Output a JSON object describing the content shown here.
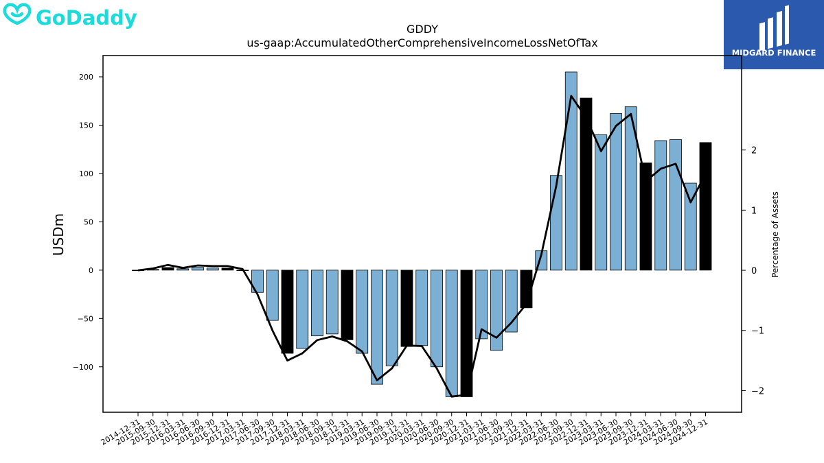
{
  "brand": {
    "logo_text": "GoDaddy",
    "logo_color": "#1BDBDB",
    "badge_text": "MIDGARD FINANCE",
    "badge_color": "#2B59AE"
  },
  "colors": {
    "bar_blue": "#7BAFD4",
    "bar_black": "#000000",
    "line": "#000000"
  },
  "chart_data": {
    "type": "bar",
    "title": "GDDY",
    "subtitle": "us-gaap:AccumulatedOtherComprehensiveIncomeLossNetOfTax",
    "ylabel": "USDm",
    "y2label": "Percentage of Assets",
    "ylim": [
      -147,
      222
    ],
    "y2lim": [
      -2.36,
      3.57
    ],
    "yticks": [
      -100,
      -50,
      0,
      50,
      100,
      150,
      200
    ],
    "y2ticks": [
      -2,
      -1,
      0,
      1,
      2
    ],
    "categories": [
      "2014-12-31",
      "2015-09-30",
      "2015-12-31",
      "2016-03-31",
      "2016-06-30",
      "2016-09-30",
      "2016-12-31",
      "2017-03-31",
      "2017-06-30",
      "2017-09-30",
      "2017-12-31",
      "2018-03-31",
      "2018-06-30",
      "2018-09-30",
      "2018-12-31",
      "2019-03-31",
      "2019-06-30",
      "2019-09-30",
      "2019-12-31",
      "2020-03-31",
      "2020-06-30",
      "2020-09-30",
      "2020-12-31",
      "2021-03-31",
      "2021-06-30",
      "2021-09-30",
      "2021-12-31",
      "2022-03-31",
      "2022-06-30",
      "2022-09-30",
      "2022-12-31",
      "2023-03-31",
      "2023-06-30",
      "2023-09-30",
      "2023-12-31",
      "2024-03-31",
      "2024-06-30",
      "2024-09-30",
      "2024-12-31"
    ],
    "series": [
      {
        "values": [
          -0.5,
          0.8,
          2.7,
          1.4,
          2.9,
          2.2,
          2.1,
          -0.5,
          -23,
          -52,
          -86,
          -81,
          -68,
          -66,
          -72,
          -86,
          -118,
          -99,
          -79,
          -78,
          -100,
          -131,
          -131,
          -71,
          -83,
          -64,
          -39,
          20,
          98,
          205,
          178,
          140,
          162,
          169,
          111,
          134,
          135,
          90,
          132
        ],
        "year_end": [
          true,
          false,
          true,
          false,
          false,
          false,
          true,
          false,
          false,
          false,
          true,
          false,
          false,
          false,
          true,
          false,
          false,
          false,
          true,
          false,
          false,
          false,
          true,
          false,
          false,
          false,
          true,
          false,
          false,
          false,
          true,
          false,
          false,
          false,
          true,
          false,
          false,
          false,
          true
        ]
      },
      {
        "axis": "right",
        "type": "line",
        "values": [
          0.0,
          0.03,
          0.09,
          0.04,
          0.08,
          0.07,
          0.07,
          0.02,
          -0.4,
          -1.0,
          -1.5,
          -1.38,
          -1.16,
          -1.1,
          -1.18,
          -1.35,
          -1.83,
          -1.63,
          -1.25,
          -1.26,
          -1.63,
          -2.1,
          -2.07,
          -0.98,
          -1.12,
          -0.87,
          -0.56,
          0.26,
          1.4,
          2.9,
          2.54,
          1.98,
          2.4,
          2.6,
          1.48,
          1.69,
          1.77,
          1.13,
          1.6
        ]
      }
    ]
  }
}
